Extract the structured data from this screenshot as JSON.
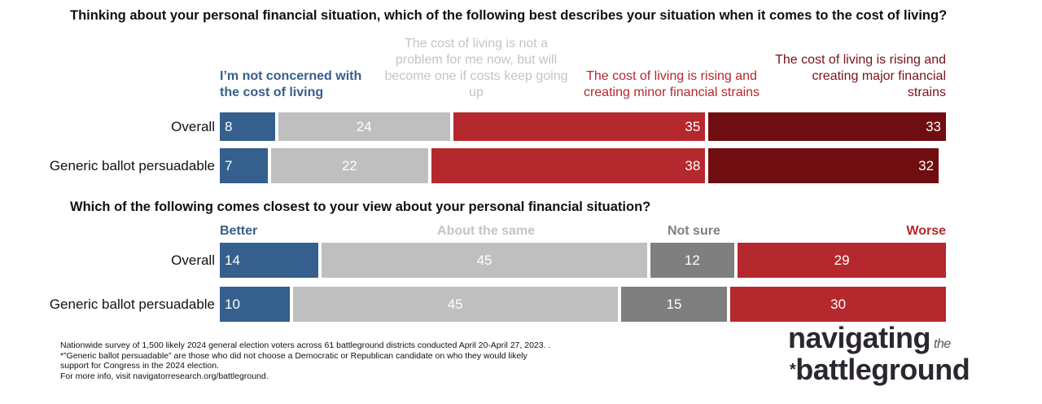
{
  "chart_data": [
    {
      "type": "bar",
      "orientation": "horizontal-stacked",
      "title": "Thinking about your personal financial situation, which of the following best describes your situation when it comes to the cost of living?",
      "categories": [
        "Overall",
        "Generic ballot persuadable"
      ],
      "series": [
        {
          "name": "I’m not concerned with the cost of living",
          "values": [
            8,
            7
          ],
          "color": "#355f8c",
          "text_color": "#355f8c",
          "align": "left"
        },
        {
          "name": "The cost of living is not a problem for me now, but will become one if costs keep going up",
          "values": [
            24,
            22
          ],
          "color": "#bfbfbf",
          "text_color": "#c4c4c4",
          "align": "center"
        },
        {
          "name": "The cost of living is rising and creating minor financial strains",
          "values": [
            35,
            38
          ],
          "color": "#b5282d",
          "text_color": "#b5282d",
          "align": "right"
        },
        {
          "name": "The cost of living is rising and creating major financial strains",
          "values": [
            33,
            32
          ],
          "color": "#700d11",
          "text_color": "#7a1216",
          "align": "right"
        }
      ],
      "xlim": [
        0,
        100
      ]
    },
    {
      "type": "bar",
      "orientation": "horizontal-stacked",
      "title": "Which of the following comes closest to your view about your personal financial situation?",
      "categories": [
        "Overall",
        "Generic ballot persuadable"
      ],
      "series": [
        {
          "name": "Better",
          "values": [
            14,
            10
          ],
          "color": "#355f8c",
          "text_color": "#355f8c",
          "align": "left"
        },
        {
          "name": "About the same",
          "values": [
            45,
            45
          ],
          "color": "#bfbfbf",
          "text_color": "#c4c4c4",
          "align": "center"
        },
        {
          "name": "Not sure",
          "values": [
            12,
            15
          ],
          "color": "#7f7f7f",
          "text_color": "#7f7f7f",
          "align": "center"
        },
        {
          "name": "Worse",
          "values": [
            29,
            30
          ],
          "color": "#b5282d",
          "text_color": "#b5282d",
          "align": "center"
        }
      ],
      "xlim": [
        0,
        100
      ]
    }
  ],
  "footnote": [
    "Nationwide survey of 1,500 likely 2024 general election voters across 61 battleground districts conducted April 20-April 27, 2023. .",
    "*”Generic ballot persuadable” are those who did not choose a Democratic or Republican candidate on who they would likely",
    "support for Congress in the 2024 election.",
    "For more info, visit navigatorresearch.org/battleground."
  ],
  "logo": {
    "line1": "navigating",
    "small": "the",
    "line2": "battleground",
    "star": "*"
  }
}
